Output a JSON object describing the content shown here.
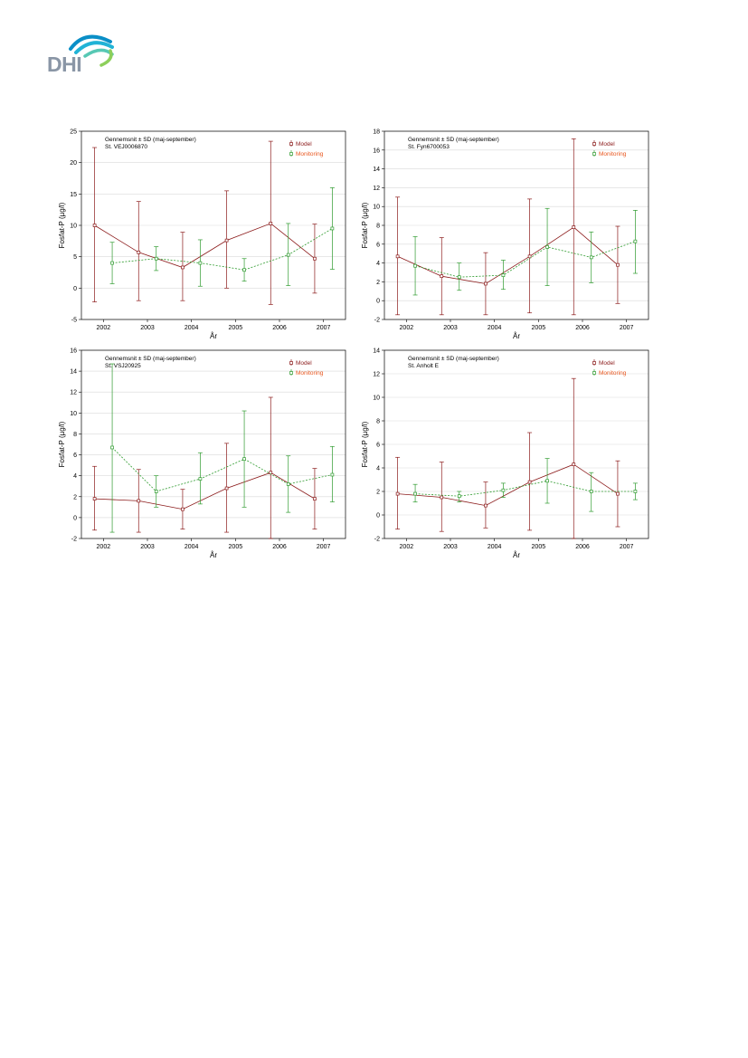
{
  "logo": {
    "text": "DHI",
    "text_color": "#8a96a6",
    "arc_colors": [
      "#0a8fc7",
      "#21b3d6",
      "#57c8b4",
      "#8dcf5b"
    ]
  },
  "colors": {
    "model": "#8b1a1a",
    "monitoring": "#2e9b2e",
    "monitoring_label": "#e8561e",
    "grid": "#d9d9d9"
  },
  "charts": [
    {
      "note_line1": "Gennemsnit ± SD (maj-september)",
      "note_line2": "St. VEJ0006870",
      "legend_model": "Model",
      "legend_monitoring": "Monitoring",
      "xlabel": "År",
      "ylabel": "Fosfat-P (µg/l)",
      "ylim": [
        -5,
        25
      ],
      "yticks": [
        -5,
        0,
        5,
        10,
        15,
        20,
        25
      ],
      "xlim": [
        2001.5,
        2007.5
      ],
      "years": [
        "2002",
        "2003",
        "2004",
        "2005",
        "2006",
        "2007"
      ],
      "chart_data": {
        "type": "line",
        "categories": [
          "2002",
          "2003",
          "2004",
          "2005",
          "2006",
          "2007"
        ],
        "series": [
          {
            "name": "Model",
            "offset": -0.2,
            "style": "solid",
            "values": [
              10.0,
              5.7,
              3.3,
              7.6,
              10.3,
              4.7
            ],
            "lower": [
              -2.2,
              -2.0,
              -2.0,
              0.0,
              -2.6,
              -0.8
            ],
            "upper": [
              22.4,
              13.8,
              8.9,
              15.5,
              23.4,
              10.2
            ]
          },
          {
            "name": "Monitoring",
            "offset": 0.2,
            "style": "dashed",
            "values": [
              4.0,
              4.7,
              4.0,
              2.9,
              5.3,
              9.5
            ],
            "lower": [
              0.7,
              2.8,
              0.3,
              1.1,
              0.4,
              3.0
            ],
            "upper": [
              7.3,
              6.6,
              7.7,
              4.7,
              10.3,
              16.0
            ]
          }
        ]
      }
    },
    {
      "note_line1": "Gennemsnit ± SD (maj-september)",
      "note_line2": "St. Fyn6700053",
      "legend_model": "Model",
      "legend_monitoring": "Monitoring",
      "xlabel": "År",
      "ylabel": "Fosfat-P (µg/l)",
      "ylim": [
        -2,
        18
      ],
      "yticks": [
        -2,
        0,
        2,
        4,
        6,
        8,
        10,
        12,
        14,
        16,
        18
      ],
      "xlim": [
        2001.5,
        2007.5
      ],
      "years": [
        "2002",
        "2003",
        "2004",
        "2005",
        "2006",
        "2007"
      ],
      "chart_data": {
        "type": "line",
        "categories": [
          "2002",
          "2003",
          "2004",
          "2005",
          "2006",
          "2007"
        ],
        "series": [
          {
            "name": "Model",
            "offset": -0.2,
            "style": "solid",
            "values": [
              4.7,
              2.6,
              1.8,
              4.7,
              7.8,
              3.8
            ],
            "lower": [
              -1.5,
              -1.5,
              -1.5,
              -1.3,
              -1.5,
              -0.3
            ],
            "upper": [
              11.0,
              6.7,
              5.1,
              10.8,
              17.2,
              7.9
            ]
          },
          {
            "name": "Monitoring",
            "offset": 0.2,
            "style": "dashed",
            "values": [
              3.7,
              2.5,
              2.7,
              5.7,
              4.6,
              6.3
            ],
            "lower": [
              0.6,
              1.1,
              1.2,
              1.6,
              1.9,
              2.9
            ],
            "upper": [
              6.8,
              4.0,
              4.3,
              9.8,
              7.3,
              9.6
            ]
          }
        ]
      }
    },
    {
      "note_line1": "Gennemsnit ± SD (maj-september)",
      "note_line2": "St. VSJ20925",
      "legend_model": "Model",
      "legend_monitoring": "Monitoring",
      "xlabel": "År",
      "ylabel": "Fosfat-P (µg/l)",
      "ylim": [
        -2,
        16
      ],
      "yticks": [
        -2,
        0,
        2,
        4,
        6,
        8,
        10,
        12,
        14,
        16
      ],
      "xlim": [
        2001.5,
        2007.5
      ],
      "years": [
        "2002",
        "2003",
        "2004",
        "2005",
        "2006",
        "2007"
      ],
      "chart_data": {
        "type": "line",
        "categories": [
          "2002",
          "2003",
          "2004",
          "2005",
          "2006",
          "2007"
        ],
        "series": [
          {
            "name": "Model",
            "offset": -0.2,
            "style": "solid",
            "values": [
              1.8,
              1.6,
              0.8,
              2.8,
              4.3,
              1.8
            ],
            "lower": [
              -1.2,
              -1.4,
              -1.1,
              -1.4,
              -2.0,
              -1.1
            ],
            "upper": [
              4.9,
              4.6,
              2.7,
              7.1,
              11.5,
              4.7
            ]
          },
          {
            "name": "Monitoring",
            "offset": 0.2,
            "style": "dashed",
            "values": [
              6.7,
              2.5,
              3.7,
              5.6,
              3.2,
              4.1
            ],
            "lower": [
              -1.4,
              1.0,
              1.3,
              1.0,
              0.5,
              1.5
            ],
            "upper": [
              14.7,
              4.0,
              6.2,
              10.2,
              5.9,
              6.8
            ]
          }
        ]
      }
    },
    {
      "note_line1": "Gennemsnit ± SD (maj-september)",
      "note_line2": "St. Anholt E",
      "legend_model": "Model",
      "legend_monitoring": "Monitoring",
      "xlabel": "År",
      "ylabel": "Fosfat-P (µg/l)",
      "ylim": [
        -2,
        14
      ],
      "yticks": [
        -2,
        0,
        2,
        4,
        6,
        8,
        10,
        12,
        14
      ],
      "xlim": [
        2001.5,
        2007.5
      ],
      "years": [
        "2002",
        "2003",
        "2004",
        "2005",
        "2006",
        "2007"
      ],
      "chart_data": {
        "type": "line",
        "categories": [
          "2002",
          "2003",
          "2004",
          "2005",
          "2006",
          "2007"
        ],
        "series": [
          {
            "name": "Model",
            "offset": -0.2,
            "style": "solid",
            "values": [
              1.8,
              1.5,
              0.8,
              2.8,
              4.3,
              1.8
            ],
            "lower": [
              -1.2,
              -1.4,
              -1.1,
              -1.3,
              -2.0,
              -1.0
            ],
            "upper": [
              4.9,
              4.5,
              2.8,
              7.0,
              11.6,
              4.6
            ]
          },
          {
            "name": "Monitoring",
            "offset": 0.2,
            "style": "dashed",
            "values": [
              1.8,
              1.6,
              2.1,
              2.9,
              2.0,
              2.0
            ],
            "lower": [
              1.1,
              1.1,
              1.5,
              1.0,
              0.3,
              1.3
            ],
            "upper": [
              2.6,
              2.0,
              2.7,
              4.8,
              3.6,
              2.7
            ]
          }
        ]
      }
    }
  ]
}
